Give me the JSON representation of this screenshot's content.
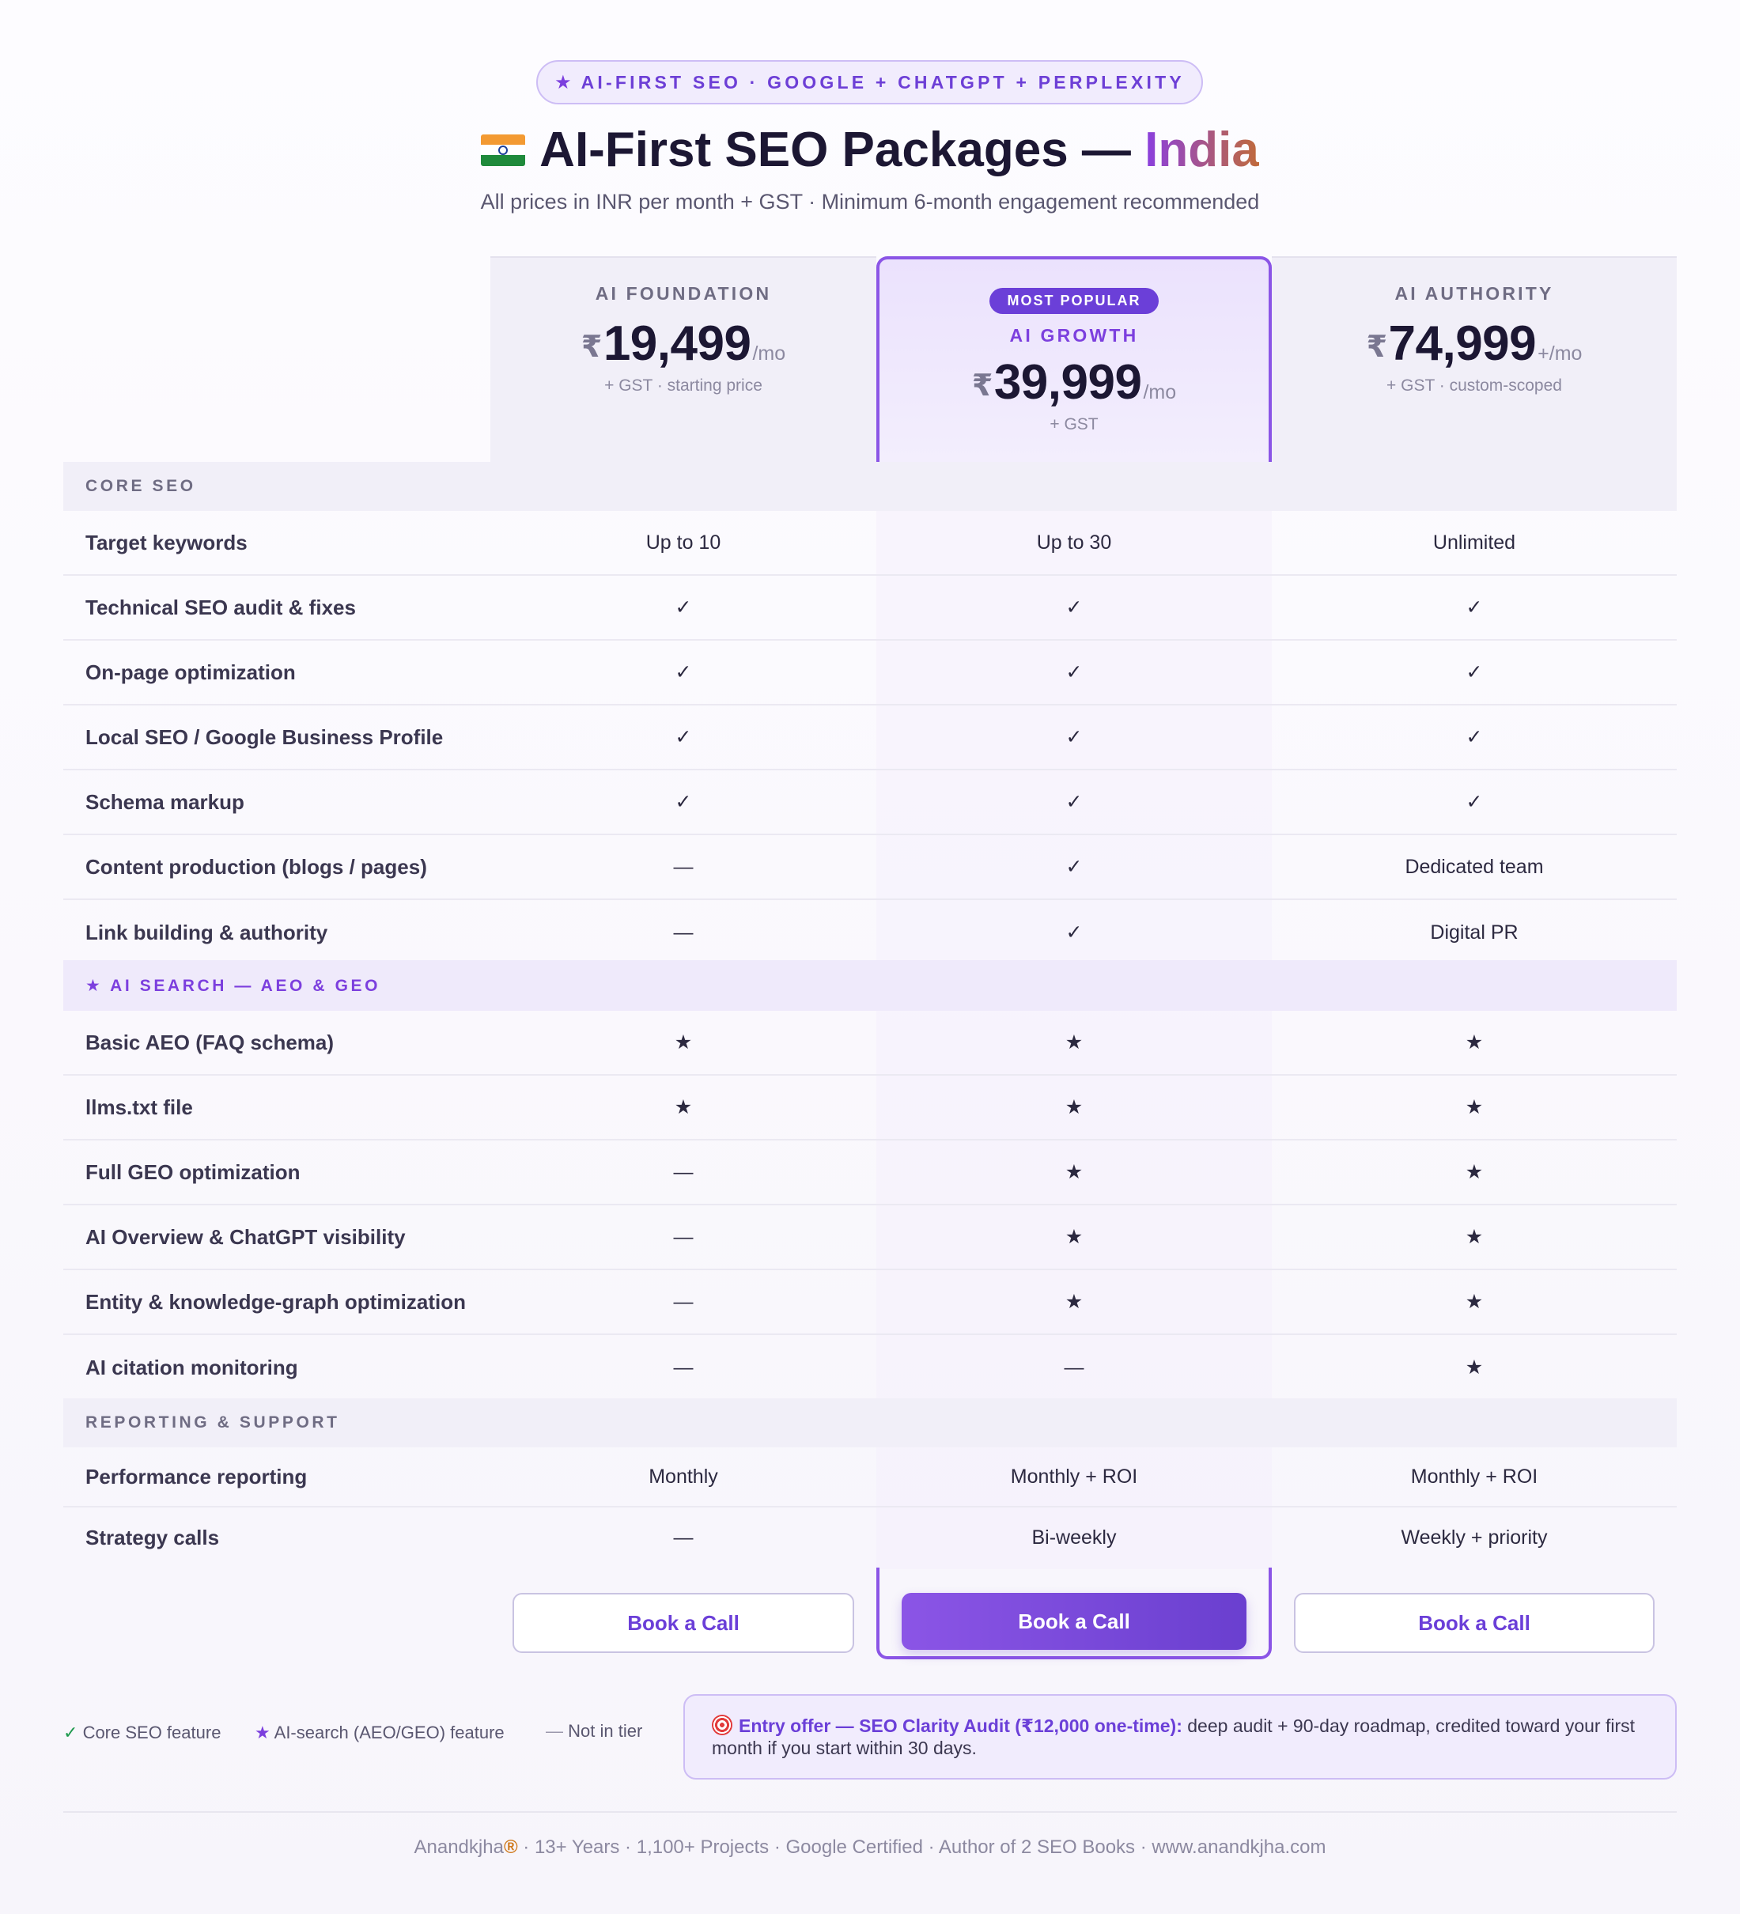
{
  "header": {
    "eyebrow_star": "★",
    "eyebrow": "AI-FIRST SEO · GOOGLE + CHATGPT + PERPLEXITY",
    "title_main": "AI-First SEO Packages — ",
    "title_accent": "India",
    "subtitle": "All prices in INR per month + GST · Minimum 6-month engagement recommended"
  },
  "tiers": [
    {
      "name": "AI FOUNDATION",
      "currency": "₹",
      "price": "19,499",
      "per": "/mo",
      "note": "+ GST · starting price",
      "cta": "Book a Call"
    },
    {
      "badge": "MOST POPULAR",
      "name": "AI GROWTH",
      "currency": "₹",
      "price": "39,999",
      "per": "/mo",
      "note": "+ GST",
      "cta": "Book a Call"
    },
    {
      "name": "AI AUTHORITY",
      "currency": "₹",
      "price": "74,999",
      "per": "+/mo",
      "note": "+ GST · custom-scoped",
      "cta": "Book a Call"
    }
  ],
  "symbols": {
    "check": "✓",
    "star": "★",
    "dash": "—"
  },
  "sections": [
    {
      "title": "CORE SEO",
      "rows": [
        {
          "label": "Target keywords",
          "values": [
            "Up to 10",
            "Up to 30",
            "Unlimited"
          ]
        },
        {
          "label": "Technical SEO audit & fixes",
          "values": [
            "✓",
            "✓",
            "✓"
          ]
        },
        {
          "label": "On-page optimization",
          "values": [
            "✓",
            "✓",
            "✓"
          ]
        },
        {
          "label": "Local SEO / Google Business Profile",
          "values": [
            "✓",
            "✓",
            "✓"
          ]
        },
        {
          "label": "Schema markup",
          "values": [
            "✓",
            "✓",
            "✓"
          ]
        },
        {
          "label": "Content production (blogs / pages)",
          "values": [
            "—",
            "✓",
            "Dedicated team"
          ]
        },
        {
          "label": "Link building & authority",
          "values": [
            "—",
            "✓",
            "Digital PR"
          ]
        }
      ]
    },
    {
      "title": "★ AI SEARCH — AEO & GEO",
      "rows": [
        {
          "label": "Basic AEO (FAQ schema)",
          "values": [
            "★",
            "★",
            "★"
          ]
        },
        {
          "label": "llms.txt file",
          "values": [
            "★",
            "★",
            "★"
          ]
        },
        {
          "label": "Full GEO optimization",
          "values": [
            "—",
            "★",
            "★"
          ]
        },
        {
          "label": "AI Overview & ChatGPT visibility",
          "values": [
            "—",
            "★",
            "★"
          ]
        },
        {
          "label": "Entity & knowledge-graph optimization",
          "values": [
            "—",
            "★",
            "★"
          ]
        },
        {
          "label": "AI citation monitoring",
          "values": [
            "—",
            "—",
            "★"
          ]
        }
      ]
    },
    {
      "title": "REPORTING & SUPPORT",
      "rows": [
        {
          "label": "Performance reporting",
          "values": [
            "Monthly",
            "Monthly + ROI",
            "Monthly + ROI"
          ]
        },
        {
          "label": "Strategy calls",
          "values": [
            "—",
            "Bi-weekly",
            "Weekly + priority"
          ]
        }
      ]
    }
  ],
  "legend": {
    "core_symbol": "✓",
    "core": "Core SEO feature",
    "ai_symbol": "★",
    "ai": "AI-search (AEO/GEO) feature",
    "none_symbol": "—",
    "none": "Not in tier"
  },
  "offer": {
    "lead": "Entry offer — SEO Clarity Audit (₹12,000 one-time):",
    "body": " deep audit + 90-day roadmap, credited toward your first month if you start within 30 days."
  },
  "footer": {
    "brand": "Anandkjha",
    "reg": "®",
    "rest": " · 13+ Years · 1,100+ Projects · Google Certified · Author of 2 SEO Books · www.anandkjha.com"
  },
  "colors": {
    "accent": "#7c3fde",
    "check": "#1f9a4e",
    "badge": "#6b3fd8",
    "offer_bg": "#f1ecfd"
  }
}
